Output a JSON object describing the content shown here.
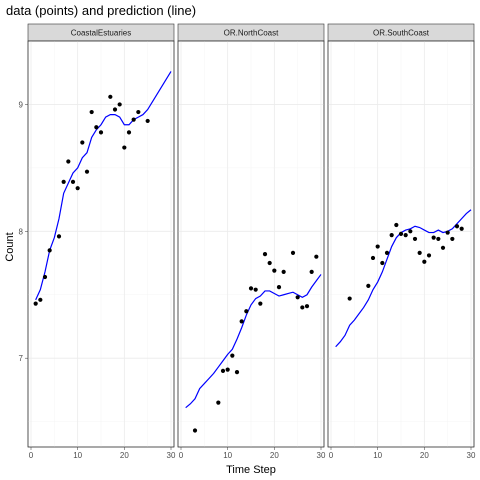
{
  "chart_data": {
    "type": "scatter",
    "title": "data (points) and prediction (line)",
    "xlabel": "Time Step",
    "ylabel": "Count",
    "xlim": [
      0,
      30
    ],
    "ylim": [
      6.3,
      9.5
    ],
    "x_ticks": [
      0,
      10,
      20,
      30
    ],
    "y_ticks": [
      7,
      8,
      9
    ],
    "grid": true,
    "legend": "none",
    "colors": {
      "points": "#000000",
      "line": "#0000ff"
    },
    "panels": [
      {
        "name": "CoastalEstuaries",
        "points": [
          [
            1,
            7.43
          ],
          [
            2,
            7.46
          ],
          [
            3,
            7.64
          ],
          [
            4,
            7.85
          ],
          [
            6,
            7.96
          ],
          [
            7,
            8.39
          ],
          [
            8,
            8.55
          ],
          [
            9,
            8.39
          ],
          [
            10,
            8.34
          ],
          [
            11,
            8.7
          ],
          [
            12,
            8.47
          ],
          [
            13,
            8.94
          ],
          [
            14,
            8.82
          ],
          [
            15,
            8.78
          ],
          [
            17,
            9.06
          ],
          [
            18,
            8.96
          ],
          [
            19,
            9.0
          ],
          [
            20,
            8.66
          ],
          [
            21,
            8.78
          ],
          [
            22,
            8.88
          ],
          [
            23,
            8.94
          ],
          [
            25,
            8.87
          ]
        ],
        "line": [
          [
            1,
            7.46
          ],
          [
            2,
            7.54
          ],
          [
            3,
            7.68
          ],
          [
            4,
            7.85
          ],
          [
            5,
            7.95
          ],
          [
            6,
            8.1
          ],
          [
            7,
            8.3
          ],
          [
            8,
            8.38
          ],
          [
            9,
            8.46
          ],
          [
            10,
            8.5
          ],
          [
            11,
            8.58
          ],
          [
            12,
            8.62
          ],
          [
            13,
            8.74
          ],
          [
            14,
            8.8
          ],
          [
            15,
            8.84
          ],
          [
            16,
            8.9
          ],
          [
            17,
            8.92
          ],
          [
            18,
            8.92
          ],
          [
            19,
            8.9
          ],
          [
            20,
            8.84
          ],
          [
            21,
            8.84
          ],
          [
            22,
            8.88
          ],
          [
            23,
            8.9
          ],
          [
            24,
            8.92
          ],
          [
            25,
            8.96
          ],
          [
            26,
            9.02
          ],
          [
            27,
            9.08
          ],
          [
            28,
            9.14
          ],
          [
            29,
            9.2
          ],
          [
            30,
            9.26
          ]
        ]
      },
      {
        "name": "OR.NorthCoast",
        "points": [
          [
            3,
            6.43
          ],
          [
            8,
            6.65
          ],
          [
            9,
            6.9
          ],
          [
            10,
            6.91
          ],
          [
            11,
            7.02
          ],
          [
            12,
            6.89
          ],
          [
            13,
            7.29
          ],
          [
            14,
            7.37
          ],
          [
            15,
            7.55
          ],
          [
            16,
            7.54
          ],
          [
            17,
            7.43
          ],
          [
            18,
            7.82
          ],
          [
            19,
            7.75
          ],
          [
            20,
            7.69
          ],
          [
            21,
            7.56
          ],
          [
            22,
            7.68
          ],
          [
            24,
            7.83
          ],
          [
            25,
            7.48
          ],
          [
            26,
            7.4
          ],
          [
            27,
            7.41
          ],
          [
            28,
            7.68
          ],
          [
            29,
            7.8
          ]
        ],
        "line": [
          [
            1,
            6.61
          ],
          [
            2,
            6.64
          ],
          [
            3,
            6.68
          ],
          [
            4,
            6.76
          ],
          [
            5,
            6.8
          ],
          [
            6,
            6.84
          ],
          [
            7,
            6.88
          ],
          [
            8,
            6.93
          ],
          [
            9,
            6.98
          ],
          [
            10,
            7.03
          ],
          [
            11,
            7.07
          ],
          [
            12,
            7.15
          ],
          [
            13,
            7.24
          ],
          [
            14,
            7.34
          ],
          [
            15,
            7.42
          ],
          [
            16,
            7.47
          ],
          [
            17,
            7.49
          ],
          [
            18,
            7.53
          ],
          [
            19,
            7.53
          ],
          [
            20,
            7.51
          ],
          [
            21,
            7.49
          ],
          [
            22,
            7.5
          ],
          [
            23,
            7.51
          ],
          [
            24,
            7.52
          ],
          [
            25,
            7.5
          ],
          [
            26,
            7.48
          ],
          [
            27,
            7.5
          ],
          [
            28,
            7.56
          ],
          [
            29,
            7.61
          ],
          [
            30,
            7.66
          ]
        ]
      },
      {
        "name": "OR.SouthCoast",
        "points": [
          [
            4,
            7.47
          ],
          [
            8,
            7.57
          ],
          [
            9,
            7.79
          ],
          [
            10,
            7.88
          ],
          [
            11,
            7.75
          ],
          [
            12,
            7.83
          ],
          [
            13,
            7.97
          ],
          [
            14,
            8.05
          ],
          [
            15,
            7.98
          ],
          [
            16,
            7.97
          ],
          [
            17,
            8.0
          ],
          [
            18,
            7.94
          ],
          [
            19,
            7.83
          ],
          [
            20,
            7.76
          ],
          [
            21,
            7.81
          ],
          [
            22,
            7.95
          ],
          [
            23,
            7.94
          ],
          [
            24,
            7.87
          ],
          [
            25,
            7.99
          ],
          [
            26,
            7.94
          ],
          [
            27,
            8.04
          ],
          [
            28,
            8.02
          ]
        ],
        "line": [
          [
            1,
            7.09
          ],
          [
            2,
            7.13
          ],
          [
            3,
            7.18
          ],
          [
            4,
            7.26
          ],
          [
            5,
            7.3
          ],
          [
            6,
            7.35
          ],
          [
            7,
            7.4
          ],
          [
            8,
            7.46
          ],
          [
            9,
            7.54
          ],
          [
            10,
            7.6
          ],
          [
            11,
            7.68
          ],
          [
            12,
            7.78
          ],
          [
            13,
            7.88
          ],
          [
            14,
            7.95
          ],
          [
            15,
            7.99
          ],
          [
            16,
            8.01
          ],
          [
            17,
            8.02
          ],
          [
            18,
            8.04
          ],
          [
            19,
            8.03
          ],
          [
            20,
            8.01
          ],
          [
            21,
            7.99
          ],
          [
            22,
            7.99
          ],
          [
            23,
            8.01
          ],
          [
            24,
            7.99
          ],
          [
            25,
            8.0
          ],
          [
            26,
            8.02
          ],
          [
            27,
            8.06
          ],
          [
            28,
            8.1
          ],
          [
            29,
            8.14
          ],
          [
            30,
            8.17
          ]
        ]
      }
    ]
  }
}
